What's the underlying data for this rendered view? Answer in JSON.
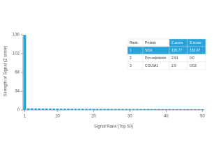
{
  "chart_data": {
    "type": "bar",
    "color": "#29a3d9",
    "x_label": "Signal Rank (Top 50)",
    "y_label": "Strength of Signal (Z score)",
    "x": [
      1,
      2,
      3,
      4,
      5,
      6,
      7,
      8,
      9,
      10,
      11,
      12,
      13,
      14,
      15,
      16,
      17,
      18,
      19,
      20,
      21,
      22,
      23,
      24,
      25,
      26,
      27,
      28,
      29,
      30,
      31,
      32,
      33,
      34,
      35,
      36,
      37,
      38,
      39,
      40,
      41,
      42,
      43,
      44,
      45,
      46,
      47,
      48,
      49,
      50
    ],
    "values": [
      135.77,
      2.91,
      2.9,
      2.8,
      2.7,
      2.6,
      2.55,
      2.5,
      2.45,
      2.4,
      2.35,
      2.3,
      2.25,
      2.2,
      2.15,
      2.1,
      2.05,
      2.0,
      1.98,
      1.95,
      1.93,
      1.9,
      1.88,
      1.85,
      1.83,
      1.8,
      1.78,
      1.75,
      1.73,
      1.7,
      1.68,
      1.66,
      1.64,
      1.62,
      1.6,
      1.58,
      1.56,
      1.54,
      1.52,
      1.5,
      1.48,
      1.46,
      1.44,
      1.42,
      1.4,
      1.38,
      1.36,
      1.34,
      1.32,
      1.3
    ],
    "xlim": [
      0.5,
      50.5
    ],
    "xticks": [
      1,
      10,
      20,
      30,
      40,
      50
    ],
    "ylim": [
      0,
      136
    ],
    "yticks": [
      0,
      34,
      68,
      102,
      136
    ]
  },
  "table": {
    "columns": [
      "Rank",
      "Protein",
      "Z score",
      "S score"
    ],
    "rows": [
      [
        "1",
        "SOX",
        "135.77",
        "133.07"
      ],
      [
        "2",
        "Pro-calcitonin",
        "2.91",
        "0.0"
      ],
      [
        "3",
        "COL6A1",
        "2.9",
        "0.03"
      ]
    ]
  }
}
